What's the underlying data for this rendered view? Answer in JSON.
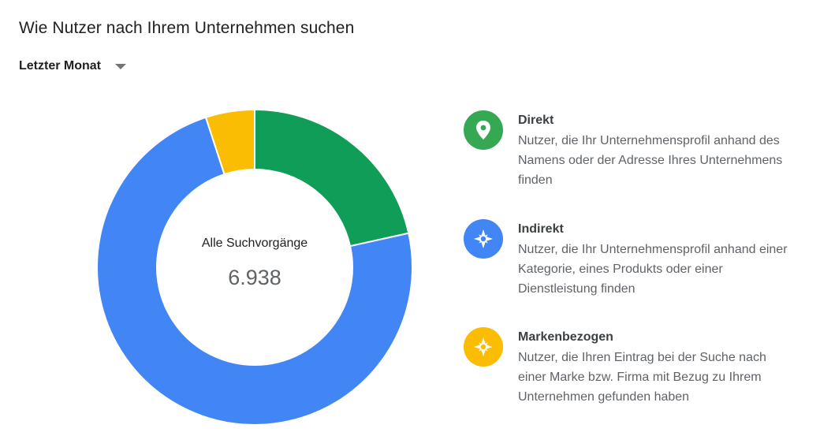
{
  "title": "Wie Nutzer nach Ihrem Unternehmen suchen",
  "period": {
    "label": "Letzter Monat"
  },
  "center": {
    "label": "Alle Suchvorgänge",
    "value": "6.938"
  },
  "colors": {
    "direct": "#0f9d58",
    "indirect": "#4285f4",
    "branded": "#fbbc04"
  },
  "legend": [
    {
      "title": "Direkt",
      "lines": [
        "Nutzer, die Ihr Unternehmensprofil anhand des",
        "Namens oder der Adresse Ihres Unternehmens",
        "finden"
      ],
      "icon": "location-pin-icon"
    },
    {
      "title": "Indirekt",
      "lines": [
        "Nutzer, die Ihr Unternehmensprofil anhand einer",
        "Kategorie, eines Produkts oder einer",
        "Dienstleistung finden"
      ],
      "icon": "compass-icon"
    },
    {
      "title": "Markenbezogen",
      "lines": [
        "Nutzer, die Ihren Eintrag bei der Suche nach",
        "einer Marke bzw. Firma mit Bezug zu Ihrem",
        "Unternehmen gefunden haben"
      ],
      "icon": "compass-icon"
    }
  ],
  "chart_data": {
    "type": "pie",
    "donut": true,
    "total": 6938,
    "categories": [
      "Direkt",
      "Indirekt",
      "Markenbezogen"
    ],
    "values": [
      1494,
      5096,
      348
    ],
    "colors": [
      "#0f9d58",
      "#4285f4",
      "#fbbc04"
    ],
    "start_angle_deg": 0,
    "direction": "clockwise",
    "legend": "right"
  }
}
